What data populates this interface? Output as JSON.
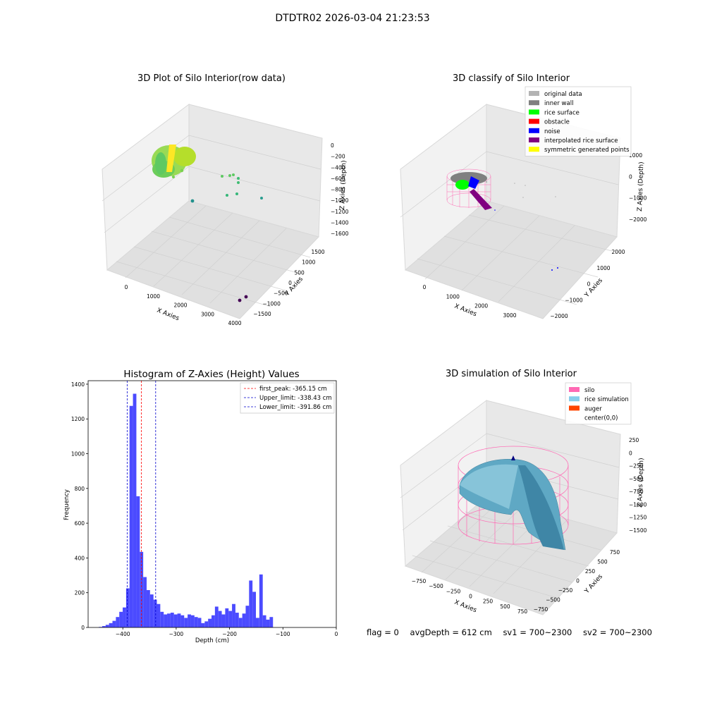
{
  "figure": {
    "suptitle": "DTDTR02 2026-03-04 21:23:53",
    "footer": {
      "flag": "flag = 0",
      "avg_depth": "avgDepth = 612 cm",
      "sv1": "sv1 = 700~2300",
      "sv2": "sv2 = 700~2300"
    }
  },
  "colors": {
    "pane_light": "#f2f2f2",
    "pane_mid": "#e8e8e8",
    "pane_dark": "#e0e0e0",
    "grid": "#d0d0d0",
    "histogram_bar": "#4b4bff",
    "first_peak_line": "#ff0000",
    "limit_line": "#0000cc"
  },
  "chart_data": [
    {
      "type": "scatter",
      "projection": "3d",
      "title": "3D Plot of Silo Interior(row data)",
      "xlabel": "X Axies",
      "ylabel": "Y Axies",
      "zlabel": "Z Axies (Depth)",
      "x_ticks": [
        "0",
        "1000",
        "2000",
        "3000",
        "4000"
      ],
      "y_ticks": [
        "−1500",
        "−1000",
        "−500",
        "0",
        "500",
        "1000",
        "1500"
      ],
      "z_ticks": [
        "−1600",
        "−1400",
        "−1200",
        "−1000",
        "−800",
        "−600",
        "−400",
        "−200",
        "0"
      ],
      "colormap": "viridis",
      "grid": true
    },
    {
      "type": "scatter",
      "projection": "3d",
      "title": "3D classify of Silo Interior",
      "zlabel": "Z Axies (Depth)",
      "xlabel": "X Axies",
      "ylabel": "Y Axies",
      "x_ticks": [
        "0",
        "1000",
        "2000",
        "3000"
      ],
      "y_ticks": [
        "−2000",
        "−1000",
        "0",
        "1000",
        "2000"
      ],
      "z_ticks": [
        "−2000",
        "−1000",
        "0",
        "1000"
      ],
      "legend_position": "top-right",
      "legend": [
        {
          "label": "original data",
          "color": "#b3b3b3"
        },
        {
          "label": "inner wall",
          "color": "#808080"
        },
        {
          "label": "rice surface",
          "color": "#00ff00"
        },
        {
          "label": "obstacle",
          "color": "#ff0000"
        },
        {
          "label": "noise",
          "color": "#0000ff"
        },
        {
          "label": "interpolated rice surface",
          "color": "#800080"
        },
        {
          "label": "symmetric generated points",
          "color": "#ffff00"
        }
      ],
      "grid": true
    },
    {
      "type": "bar",
      "title": "Histogram of Z-Axies (Height) Values",
      "xlabel": "Depth (cm)",
      "ylabel": "Frequency",
      "xlim": [
        -465,
        0
      ],
      "ylim": [
        0,
        1420
      ],
      "x_ticks": [
        -400,
        -300,
        -200,
        -100,
        0
      ],
      "x_tick_labels": [
        "−400",
        "−300",
        "−200",
        "−100",
        "0"
      ],
      "y_ticks": [
        0,
        200,
        400,
        600,
        800,
        1000,
        1200,
        1400
      ],
      "bin_width": 6.4,
      "bin_start": -445,
      "values": [
        3,
        8,
        15,
        25,
        38,
        60,
        90,
        115,
        225,
        1275,
        1345,
        755,
        435,
        290,
        215,
        190,
        160,
        135,
        90,
        75,
        80,
        85,
        75,
        80,
        70,
        55,
        75,
        70,
        60,
        55,
        25,
        35,
        50,
        70,
        120,
        95,
        75,
        110,
        95,
        135,
        85,
        55,
        80,
        125,
        270,
        205,
        55,
        305,
        70,
        45,
        60
      ],
      "reference_lines": [
        {
          "label": "first_peak: -365.15 cm",
          "x": -365.15,
          "color": "#ff0000"
        },
        {
          "label": "Upper_limit: -338.43 cm",
          "x": -338.43,
          "color": "#0000cc"
        },
        {
          "label": "Lower_limit: -391.86 cm",
          "x": -391.86,
          "color": "#0000cc"
        }
      ],
      "legend_position": "top-right"
    },
    {
      "type": "surface",
      "projection": "3d",
      "title": "3D simulation of Silo Interior",
      "xlabel": "X Axies",
      "ylabel": "Y Axies",
      "zlabel": "Z Axies (Depth)",
      "x_ticks": [
        "−750",
        "−500",
        "−250",
        "0",
        "250",
        "500",
        "750"
      ],
      "y_ticks": [
        "−750",
        "−500",
        "−250",
        "0",
        "250",
        "500",
        "750"
      ],
      "z_ticks": [
        "−1500",
        "−1250",
        "−1000",
        "−750",
        "−500",
        "−250",
        "0",
        "250"
      ],
      "legend_position": "top-right",
      "legend": [
        {
          "label": "silo",
          "color": "#ff69b4"
        },
        {
          "label": "rice simulation",
          "color": "#87ceeb"
        },
        {
          "label": "auger",
          "color": "#ff4500"
        },
        {
          "label": "center(0,0)",
          "color": ""
        }
      ],
      "grid": true
    }
  ]
}
